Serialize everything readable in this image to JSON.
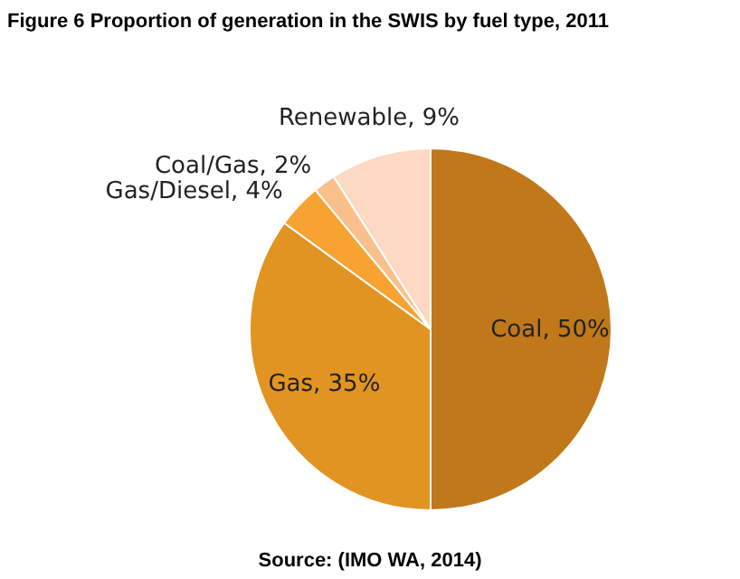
{
  "chart_data": {
    "type": "pie",
    "title": "Figure 6     Proportion of generation in the SWIS by fuel type, 2011",
    "categories": [
      "Coal",
      "Gas",
      "Gas/Diesel",
      "Coal/Gas",
      "Renewable"
    ],
    "values": [
      50,
      35,
      4,
      2,
      9
    ],
    "colors": [
      "#c0781a",
      "#e29422",
      "#f8a232",
      "#fac08c",
      "#fcd9c2"
    ],
    "value_labels": [
      "50%",
      "35%",
      "4%",
      "2%",
      "9%"
    ],
    "annotations": [
      "Source: (IMO WA, 2014)"
    ]
  }
}
